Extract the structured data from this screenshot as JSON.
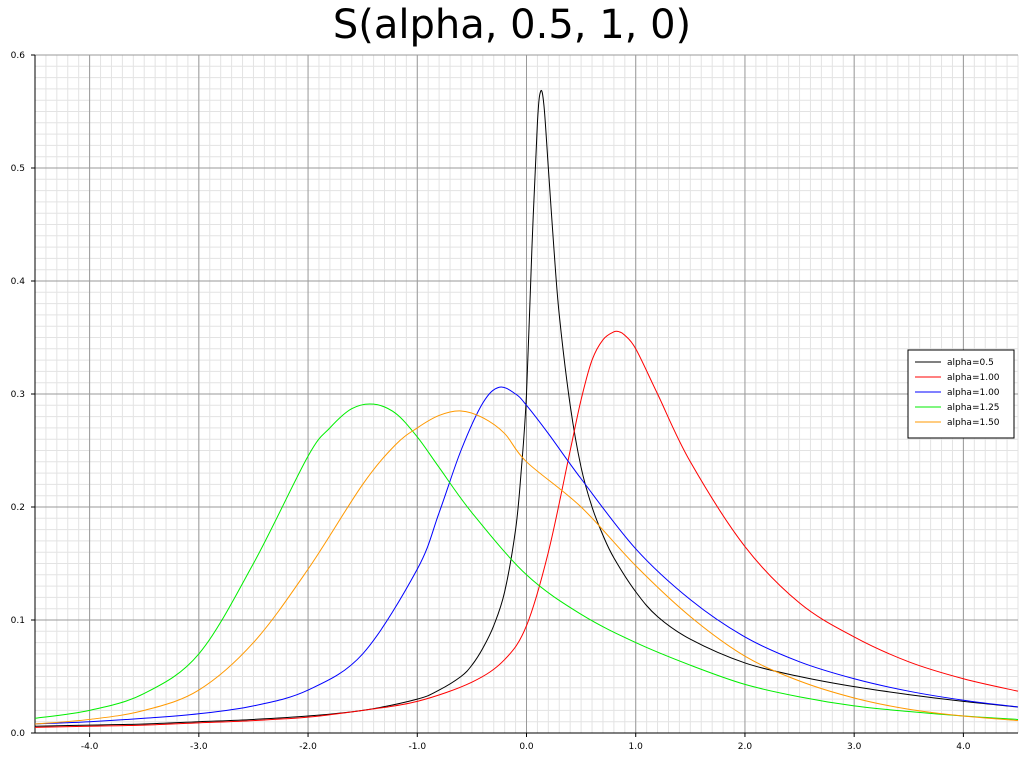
{
  "chart_data": {
    "type": "line",
    "title": "S(alpha, 0.5, 1, 0)",
    "xlabel": "",
    "ylabel": "",
    "xlim": [
      -4.5,
      4.5
    ],
    "ylim": [
      0.0,
      0.6
    ],
    "x_ticks": [
      -4.0,
      -3.0,
      -2.0,
      -1.0,
      0.0,
      1.0,
      2.0,
      3.0,
      4.0
    ],
    "x_tick_labels": [
      "-4.0",
      "-3.0",
      "-2.0",
      "-1.0",
      "0.0",
      "1.0",
      "2.0",
      "3.0",
      "4.0"
    ],
    "y_ticks": [
      0.0,
      0.1,
      0.2,
      0.3,
      0.4,
      0.5,
      0.6
    ],
    "y_tick_labels": [
      "0.0",
      "0.1",
      "0.2",
      "0.3",
      "0.4",
      "0.5",
      "0.6"
    ],
    "grid": true,
    "minor_grid": true,
    "legend_position": "right",
    "series": [
      {
        "name": "alpha=0.5",
        "color": "#000000",
        "x": [
          -4.5,
          -4.0,
          -3.5,
          -3.0,
          -2.5,
          -2.0,
          -1.5,
          -1.0,
          -0.8,
          -0.6,
          -0.5,
          -0.4,
          -0.3,
          -0.2,
          -0.1,
          -0.05,
          0.0,
          0.05,
          0.1,
          0.13,
          0.16,
          0.2,
          0.25,
          0.3,
          0.4,
          0.5,
          0.6,
          0.7,
          0.8,
          1.0,
          1.2,
          1.5,
          2.0,
          2.5,
          3.0,
          3.5,
          4.0,
          4.5
        ],
        "y": [
          0.006,
          0.007,
          0.008,
          0.01,
          0.012,
          0.015,
          0.02,
          0.03,
          0.038,
          0.05,
          0.06,
          0.075,
          0.095,
          0.125,
          0.18,
          0.23,
          0.3,
          0.43,
          0.54,
          0.568,
          0.555,
          0.5,
          0.43,
          0.37,
          0.29,
          0.235,
          0.2,
          0.175,
          0.155,
          0.125,
          0.103,
          0.083,
          0.062,
          0.05,
          0.041,
          0.034,
          0.028,
          0.023
        ]
      },
      {
        "name": "alpha=1.00",
        "color": "#ff0000",
        "x": [
          -4.5,
          -4.0,
          -3.5,
          -3.0,
          -2.5,
          -2.0,
          -1.5,
          -1.0,
          -0.5,
          -0.2,
          0.0,
          0.2,
          0.4,
          0.5,
          0.6,
          0.7,
          0.8,
          0.85,
          0.9,
          1.0,
          1.2,
          1.5,
          2.0,
          2.5,
          3.0,
          3.5,
          4.0,
          4.5
        ],
        "y": [
          0.005,
          0.006,
          0.007,
          0.009,
          0.011,
          0.014,
          0.02,
          0.028,
          0.045,
          0.065,
          0.095,
          0.16,
          0.25,
          0.295,
          0.33,
          0.348,
          0.355,
          0.355,
          0.352,
          0.34,
          0.3,
          0.24,
          0.165,
          0.115,
          0.085,
          0.063,
          0.048,
          0.037
        ]
      },
      {
        "name": "alpha=1.00",
        "color": "#0000ff",
        "x": [
          -4.5,
          -4.0,
          -3.5,
          -3.0,
          -2.5,
          -2.0,
          -1.5,
          -1.0,
          -0.8,
          -0.6,
          -0.4,
          -0.25,
          -0.1,
          0.0,
          0.2,
          0.5,
          1.0,
          1.5,
          2.0,
          2.5,
          3.0,
          3.5,
          4.0,
          4.5
        ],
        "y": [
          0.008,
          0.01,
          0.013,
          0.017,
          0.024,
          0.038,
          0.07,
          0.145,
          0.195,
          0.25,
          0.292,
          0.306,
          0.3,
          0.29,
          0.265,
          0.225,
          0.163,
          0.118,
          0.085,
          0.063,
          0.048,
          0.037,
          0.029,
          0.023
        ]
      },
      {
        "name": "alpha=1.25",
        "color": "#00ee00",
        "x": [
          -4.5,
          -4.0,
          -3.5,
          -3.0,
          -2.5,
          -2.0,
          -1.8,
          -1.6,
          -1.4,
          -1.2,
          -1.0,
          -0.8,
          -0.5,
          0.0,
          0.5,
          1.0,
          1.5,
          2.0,
          2.5,
          3.0,
          3.5,
          4.0,
          4.5
        ],
        "y": [
          0.013,
          0.02,
          0.035,
          0.07,
          0.15,
          0.245,
          0.27,
          0.287,
          0.291,
          0.283,
          0.262,
          0.235,
          0.195,
          0.14,
          0.105,
          0.08,
          0.06,
          0.043,
          0.032,
          0.024,
          0.019,
          0.015,
          0.012
        ]
      },
      {
        "name": "alpha=1.50",
        "color": "#ff9900",
        "x": [
          -4.5,
          -4.0,
          -3.5,
          -3.0,
          -2.5,
          -2.0,
          -1.5,
          -1.2,
          -1.0,
          -0.8,
          -0.6,
          -0.4,
          -0.2,
          0.0,
          0.5,
          1.0,
          1.5,
          2.0,
          2.5,
          3.0,
          3.5,
          4.0,
          4.5
        ],
        "y": [
          0.008,
          0.012,
          0.02,
          0.038,
          0.08,
          0.145,
          0.22,
          0.255,
          0.27,
          0.281,
          0.285,
          0.279,
          0.265,
          0.24,
          0.2,
          0.148,
          0.103,
          0.068,
          0.046,
          0.031,
          0.021,
          0.015,
          0.011
        ]
      }
    ]
  }
}
